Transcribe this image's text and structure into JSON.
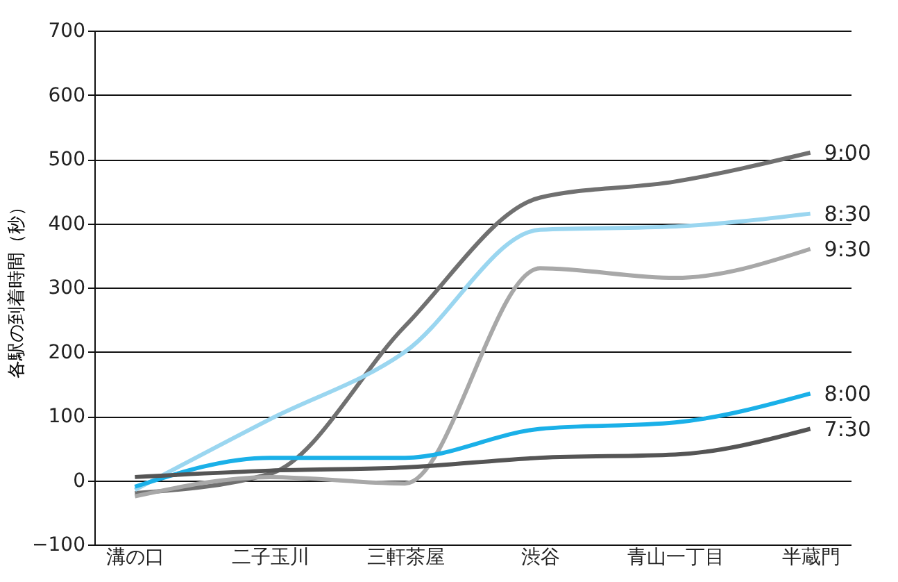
{
  "chart_data": {
    "type": "line",
    "ylabel": "各駅の到着時間（秒）",
    "categories": [
      "溝の口",
      "二子玉川",
      "三軒茶屋",
      "渋谷",
      "青山一丁目",
      "半蔵門"
    ],
    "series": [
      {
        "name": "9:00",
        "color": "#707070",
        "values": [
          -20,
          10,
          240,
          440,
          465,
          510
        ]
      },
      {
        "name": "8:30",
        "color": "#9ad6f0",
        "values": [
          -15,
          95,
          200,
          390,
          395,
          415
        ]
      },
      {
        "name": "9:30",
        "color": "#a8a8a8",
        "values": [
          -25,
          5,
          -5,
          330,
          315,
          360
        ]
      },
      {
        "name": "8:00",
        "color": "#1ab0e8",
        "values": [
          -10,
          35,
          35,
          80,
          90,
          135
        ]
      },
      {
        "name": "7:30",
        "color": "#555555",
        "values": [
          5,
          15,
          20,
          35,
          40,
          80
        ]
      }
    ],
    "ylim": [
      -100,
      700
    ],
    "yticks": [
      -100,
      0,
      100,
      200,
      300,
      400,
      500,
      600,
      700
    ],
    "grid": "y",
    "marker": "none",
    "line_style": "solid",
    "legend": false
  }
}
